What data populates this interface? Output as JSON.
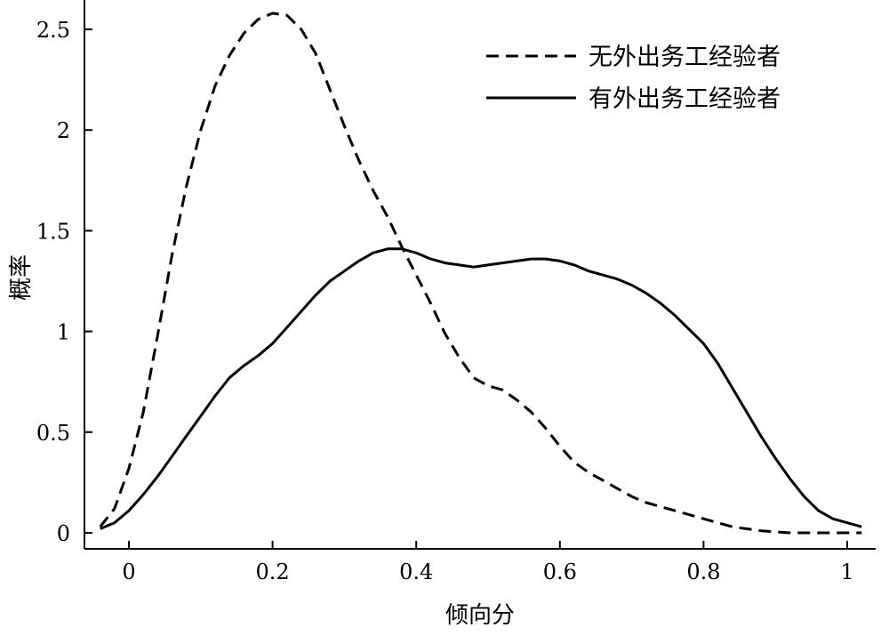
{
  "chart_data": {
    "type": "line",
    "xlabel": "倾向分",
    "ylabel": "概率",
    "xlim": [
      -0.06,
      1.04
    ],
    "ylim": [
      -0.08,
      2.65
    ],
    "x_ticks": [
      0,
      0.2,
      0.4,
      0.6,
      0.8,
      1
    ],
    "x_tick_labels": [
      "0",
      "0.2",
      "0.4",
      "0.6",
      "0.8",
      "1"
    ],
    "y_ticks": [
      0,
      0.5,
      1,
      1.5,
      2,
      2.5
    ],
    "y_tick_labels": [
      "0",
      "0.5",
      "1",
      "1.5",
      "2",
      "2.5"
    ],
    "grid": false,
    "legend_position": "top-right",
    "series": [
      {
        "name": "无外出务工经验者",
        "style": "dashed",
        "color": "#000000",
        "points": [
          [
            -0.04,
            0.03
          ],
          [
            -0.02,
            0.12
          ],
          [
            0.0,
            0.32
          ],
          [
            0.02,
            0.6
          ],
          [
            0.04,
            0.98
          ],
          [
            0.06,
            1.38
          ],
          [
            0.08,
            1.72
          ],
          [
            0.1,
            2.0
          ],
          [
            0.12,
            2.22
          ],
          [
            0.14,
            2.37
          ],
          [
            0.16,
            2.48
          ],
          [
            0.18,
            2.55
          ],
          [
            0.2,
            2.58
          ],
          [
            0.22,
            2.57
          ],
          [
            0.24,
            2.5
          ],
          [
            0.26,
            2.38
          ],
          [
            0.28,
            2.2
          ],
          [
            0.3,
            2.02
          ],
          [
            0.32,
            1.85
          ],
          [
            0.34,
            1.7
          ],
          [
            0.36,
            1.57
          ],
          [
            0.38,
            1.42
          ],
          [
            0.4,
            1.28
          ],
          [
            0.42,
            1.14
          ],
          [
            0.44,
            0.99
          ],
          [
            0.46,
            0.87
          ],
          [
            0.48,
            0.77
          ],
          [
            0.5,
            0.73
          ],
          [
            0.52,
            0.71
          ],
          [
            0.54,
            0.66
          ],
          [
            0.56,
            0.6
          ],
          [
            0.58,
            0.52
          ],
          [
            0.6,
            0.43
          ],
          [
            0.62,
            0.35
          ],
          [
            0.64,
            0.3
          ],
          [
            0.66,
            0.26
          ],
          [
            0.68,
            0.22
          ],
          [
            0.7,
            0.18
          ],
          [
            0.72,
            0.15
          ],
          [
            0.74,
            0.13
          ],
          [
            0.76,
            0.11
          ],
          [
            0.78,
            0.09
          ],
          [
            0.8,
            0.07
          ],
          [
            0.82,
            0.05
          ],
          [
            0.84,
            0.03
          ],
          [
            0.86,
            0.02
          ],
          [
            0.88,
            0.01
          ],
          [
            0.9,
            0.005
          ],
          [
            0.92,
            0.0
          ],
          [
            0.96,
            0.0
          ],
          [
            1.0,
            0.0
          ],
          [
            1.02,
            0.0
          ]
        ]
      },
      {
        "name": "有外出务工经验者",
        "style": "solid",
        "color": "#000000",
        "points": [
          [
            -0.04,
            0.02
          ],
          [
            -0.02,
            0.05
          ],
          [
            0.0,
            0.11
          ],
          [
            0.02,
            0.19
          ],
          [
            0.04,
            0.28
          ],
          [
            0.06,
            0.38
          ],
          [
            0.08,
            0.48
          ],
          [
            0.1,
            0.58
          ],
          [
            0.12,
            0.68
          ],
          [
            0.14,
            0.77
          ],
          [
            0.16,
            0.83
          ],
          [
            0.18,
            0.88
          ],
          [
            0.2,
            0.94
          ],
          [
            0.22,
            1.02
          ],
          [
            0.24,
            1.1
          ],
          [
            0.26,
            1.18
          ],
          [
            0.28,
            1.25
          ],
          [
            0.3,
            1.3
          ],
          [
            0.32,
            1.35
          ],
          [
            0.34,
            1.39
          ],
          [
            0.36,
            1.41
          ],
          [
            0.38,
            1.41
          ],
          [
            0.4,
            1.39
          ],
          [
            0.42,
            1.36
          ],
          [
            0.44,
            1.34
          ],
          [
            0.46,
            1.33
          ],
          [
            0.48,
            1.32
          ],
          [
            0.5,
            1.33
          ],
          [
            0.52,
            1.34
          ],
          [
            0.54,
            1.35
          ],
          [
            0.56,
            1.36
          ],
          [
            0.58,
            1.36
          ],
          [
            0.6,
            1.35
          ],
          [
            0.62,
            1.33
          ],
          [
            0.64,
            1.3
          ],
          [
            0.66,
            1.28
          ],
          [
            0.68,
            1.26
          ],
          [
            0.7,
            1.23
          ],
          [
            0.72,
            1.19
          ],
          [
            0.74,
            1.14
          ],
          [
            0.76,
            1.08
          ],
          [
            0.78,
            1.01
          ],
          [
            0.8,
            0.94
          ],
          [
            0.82,
            0.84
          ],
          [
            0.84,
            0.72
          ],
          [
            0.86,
            0.6
          ],
          [
            0.88,
            0.48
          ],
          [
            0.9,
            0.37
          ],
          [
            0.92,
            0.27
          ],
          [
            0.94,
            0.18
          ],
          [
            0.96,
            0.11
          ],
          [
            0.98,
            0.07
          ],
          [
            1.0,
            0.05
          ],
          [
            1.02,
            0.03
          ]
        ]
      }
    ]
  }
}
